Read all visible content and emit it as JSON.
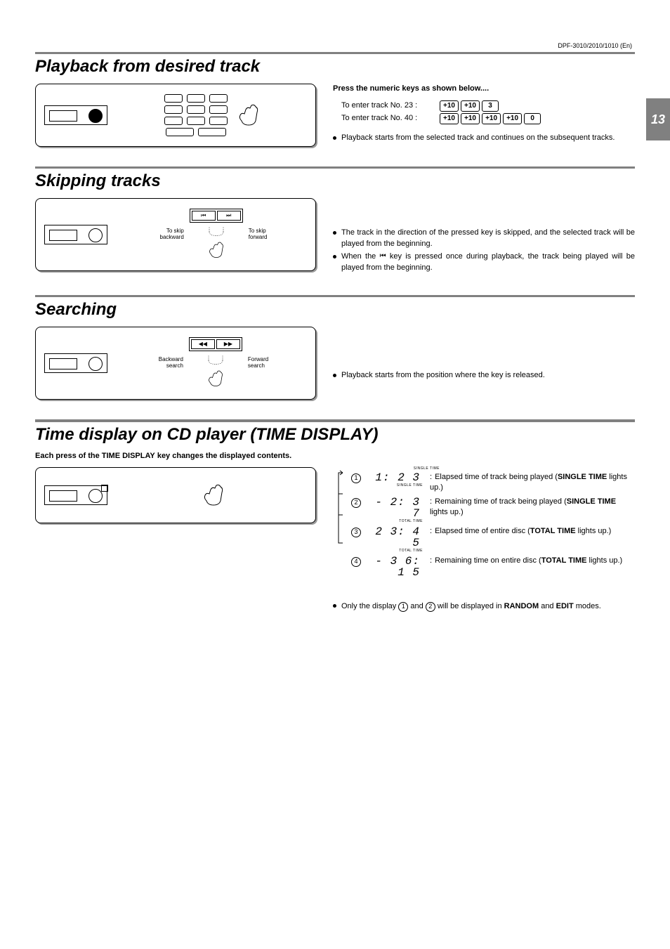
{
  "meta": {
    "model_line": "DPF-3010/2010/1010 (En)",
    "page_number": "13"
  },
  "section1": {
    "title": "Playback from desired track",
    "subhead": "Press the numeric keys as shown below....",
    "row1_label": "To enter track No. 23 :",
    "row1_keys": [
      "+10",
      "+10",
      "3"
    ],
    "row2_label": "To enter track No. 40 :",
    "row2_keys": [
      "+10",
      "+10",
      "+10",
      "+10",
      "0"
    ],
    "bullets": [
      "Playback starts from the selected track and continues on the subsequent tracks."
    ]
  },
  "section2": {
    "title": "Skipping tracks",
    "label_backward": "To skip backward",
    "label_forward": "To skip forward",
    "btn_prev": "⏮",
    "btn_next": "⏭",
    "bullet1": "The track in the direction of the pressed key is skipped, and the selected track will be played from  the beginning.",
    "bullet2_a": "When the ",
    "bullet2_b": " key is pressed once during playback, the track being played will be played from the beginning."
  },
  "section3": {
    "title": "Searching",
    "label_backward": "Backward search",
    "label_forward": "Forward search",
    "btn_rew": "◀◀",
    "btn_ff": "▶▶",
    "bullets": [
      "Playback starts from the position where the key is released."
    ]
  },
  "section4": {
    "title": "Time display on CD player (TIME DISPLAY)",
    "subhead": "Each press of the TIME DISPLAY key changes the displayed contents.",
    "caption_single": "SINGLE  TIME",
    "caption_total": "TOTAL  TIME",
    "rows": [
      {
        "n": "1",
        "seg": "1: 2 3",
        "caption": "SINGLE  TIME",
        "cap_above": true,
        "desc_a": "Elapsed time of track being played (",
        "bold": "SINGLE TIME",
        "desc_b": " lights up.)"
      },
      {
        "n": "2",
        "seg": "- 2: 3 7",
        "caption": "SINGLE  TIME",
        "desc_a": "Remaining time of track being played (",
        "bold": "SINGLE TIME",
        "desc_b": " lights up.)"
      },
      {
        "n": "3",
        "seg": "2 3: 4 5",
        "caption": "TOTAL  TIME",
        "desc_a": "Elapsed time of entire disc (",
        "bold": "TOTAL TIME",
        "desc_b": " lights up.)"
      },
      {
        "n": "4",
        "seg": "- 3 6:  1 5",
        "caption": "TOTAL  TIME",
        "desc_a": "Remaining time on entire disc (",
        "bold": "TOTAL TIME",
        "desc_b": " lights up.)"
      }
    ],
    "note_a": "Only the display ",
    "note_b": " and ",
    "note_c": " will be displayed in ",
    "note_bold1": "RANDOM",
    "note_d": " and ",
    "note_bold2": "EDIT",
    "note_e": " modes."
  }
}
